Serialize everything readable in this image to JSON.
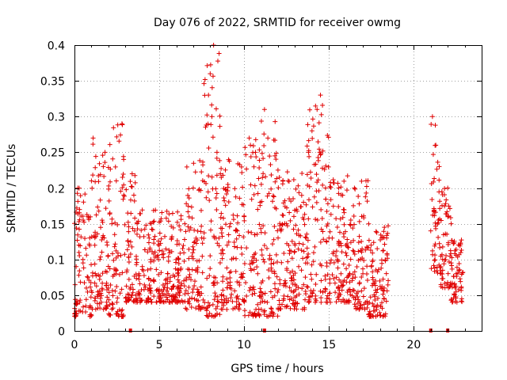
{
  "chart_data": {
    "type": "scatter",
    "title": "Day 076 of 2022, SRMTID for receiver owmg",
    "xlabel": "GPS time / hours",
    "ylabel": "SRMTID / TECUs",
    "xlim": [
      0,
      24
    ],
    "ylim": [
      0,
      0.4
    ],
    "xticks": [
      "0",
      "5",
      "10",
      "15",
      "20"
    ],
    "yticks": [
      "0",
      "0.05",
      "0.1",
      "0.15",
      "0.2",
      "0.25",
      "0.3",
      "0.35",
      "0.4"
    ],
    "grid": true,
    "marker": "plus",
    "marker_color": "#e00000",
    "series": [
      {
        "name": "SRMTID",
        "note": "dense scatter of ~2000 points; values are representative samples read from the figure",
        "envelope": [
          {
            "x": [
              0.0,
              1.0
            ],
            "y": [
              0.02,
              0.21
            ]
          },
          {
            "x": [
              1.0,
              2.0
            ],
            "y": [
              0.03,
              0.27
            ]
          },
          {
            "x": [
              2.0,
              3.0
            ],
            "y": [
              0.02,
              0.29
            ]
          },
          {
            "x": [
              3.0,
              3.6
            ],
            "y": [
              0.04,
              0.22
            ]
          },
          {
            "x": [
              3.6,
              6.5
            ],
            "y": [
              0.04,
              0.17
            ]
          },
          {
            "x": [
              6.5,
              7.6
            ],
            "y": [
              0.03,
              0.24
            ]
          },
          {
            "x": [
              7.6,
              8.6
            ],
            "y": [
              0.02,
              0.4
            ]
          },
          {
            "x": [
              8.6,
              10.0
            ],
            "y": [
              0.03,
              0.24
            ]
          },
          {
            "x": [
              10.0,
              11.0
            ],
            "y": [
              0.02,
              0.27
            ]
          },
          {
            "x": [
              11.0,
              12.0
            ],
            "y": [
              0.02,
              0.31
            ]
          },
          {
            "x": [
              12.0,
              13.6
            ],
            "y": [
              0.03,
              0.23
            ]
          },
          {
            "x": [
              13.6,
              15.0
            ],
            "y": [
              0.04,
              0.33
            ]
          },
          {
            "x": [
              15.0,
              16.4
            ],
            "y": [
              0.04,
              0.22
            ]
          },
          {
            "x": [
              16.4,
              17.3
            ],
            "y": [
              0.03,
              0.22
            ]
          },
          {
            "x": [
              17.3,
              18.5
            ],
            "y": [
              0.02,
              0.15
            ]
          },
          {
            "x": [
              21.0,
              21.6
            ],
            "y": [
              0.08,
              0.3
            ]
          },
          {
            "x": [
              21.6,
              22.2
            ],
            "y": [
              0.06,
              0.2
            ]
          },
          {
            "x": [
              22.2,
              22.9
            ],
            "y": [
              0.04,
              0.13
            ]
          }
        ],
        "x": [
          0.1,
          0.2,
          0.3,
          0.5,
          0.7,
          0.9,
          1.0,
          1.1,
          1.2,
          1.5,
          1.7,
          1.8,
          2.0,
          2.2,
          2.5,
          2.8,
          2.9,
          3.2,
          3.4,
          3.5,
          3.8,
          4.0,
          4.5,
          5.0,
          5.5,
          6.0,
          6.5,
          7.0,
          7.5,
          7.9,
          8.0,
          8.1,
          8.2,
          8.4,
          8.6,
          9.0,
          9.5,
          10.0,
          10.3,
          10.8,
          11.2,
          11.4,
          11.6,
          12.0,
          12.5,
          13.0,
          13.5,
          13.8,
          14.0,
          14.3,
          14.5,
          14.8,
          15.0,
          15.5,
          16.0,
          16.5,
          17.0,
          17.5,
          18.0,
          18.4,
          21.0,
          21.1,
          21.3,
          21.5,
          21.7,
          22.0,
          22.2,
          22.5,
          22.8
        ],
        "y": [
          0.09,
          0.2,
          0.17,
          0.1,
          0.06,
          0.13,
          0.21,
          0.27,
          0.12,
          0.1,
          0.23,
          0.25,
          0.06,
          0.15,
          0.04,
          0.29,
          0.24,
          0.12,
          0.22,
          0.19,
          0.08,
          0.09,
          0.1,
          0.12,
          0.08,
          0.1,
          0.15,
          0.2,
          0.13,
          0.33,
          0.36,
          0.3,
          0.4,
          0.25,
          0.22,
          0.12,
          0.14,
          0.16,
          0.27,
          0.08,
          0.31,
          0.27,
          0.1,
          0.13,
          0.15,
          0.12,
          0.18,
          0.25,
          0.28,
          0.31,
          0.33,
          0.2,
          0.13,
          0.1,
          0.12,
          0.2,
          0.08,
          0.09,
          0.07,
          0.13,
          0.14,
          0.3,
          0.26,
          0.23,
          0.1,
          0.2,
          0.15,
          0.08,
          0.06
        ]
      }
    ],
    "baseline_markers_x": [
      3.3,
      11.2,
      21.0,
      22.0
    ]
  }
}
